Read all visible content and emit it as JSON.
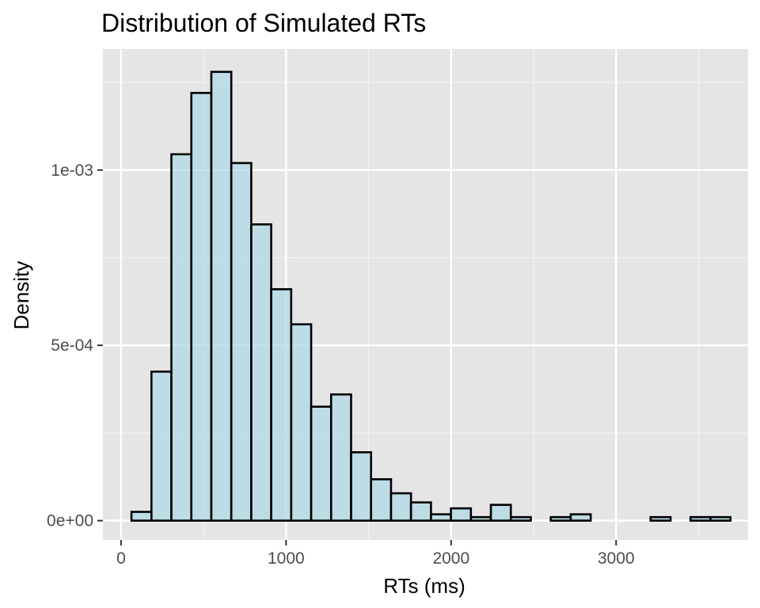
{
  "chart_data": {
    "type": "bar",
    "subtype": "histogram",
    "title": "Distribution of Simulated RTs",
    "xlabel": "RTs (ms)",
    "ylabel": "Density",
    "xlim": [
      -110,
      3800
    ],
    "ylim": [
      -5.5e-05,
      0.001345
    ],
    "x_ticks": [
      0,
      1000,
      2000,
      3000
    ],
    "x_tick_labels": [
      "0",
      "1000",
      "2000",
      "3000"
    ],
    "y_ticks": [
      0,
      0.0005,
      0.001
    ],
    "y_tick_labels": [
      "0e+00",
      "5e-04",
      "1e-03"
    ],
    "bin_width": 121,
    "bins": [
      {
        "start": 63,
        "end": 184,
        "density": 2.5e-05
      },
      {
        "start": 184,
        "end": 305,
        "density": 0.000425
      },
      {
        "start": 305,
        "end": 426,
        "density": 0.001045
      },
      {
        "start": 426,
        "end": 547,
        "density": 0.00122
      },
      {
        "start": 547,
        "end": 668,
        "density": 0.00128
      },
      {
        "start": 668,
        "end": 789,
        "density": 0.00102
      },
      {
        "start": 789,
        "end": 910,
        "density": 0.000845
      },
      {
        "start": 910,
        "end": 1031,
        "density": 0.00066
      },
      {
        "start": 1031,
        "end": 1152,
        "density": 0.00056
      },
      {
        "start": 1152,
        "end": 1273,
        "density": 0.000325
      },
      {
        "start": 1273,
        "end": 1394,
        "density": 0.00036
      },
      {
        "start": 1394,
        "end": 1515,
        "density": 0.000195
      },
      {
        "start": 1515,
        "end": 1636,
        "density": 0.000118
      },
      {
        "start": 1636,
        "end": 1757,
        "density": 7.8e-05
      },
      {
        "start": 1757,
        "end": 1878,
        "density": 5.2e-05
      },
      {
        "start": 1878,
        "end": 1999,
        "density": 1.8e-05
      },
      {
        "start": 1999,
        "end": 2120,
        "density": 3.5e-05
      },
      {
        "start": 2120,
        "end": 2241,
        "density": 1e-05
      },
      {
        "start": 2241,
        "end": 2362,
        "density": 4.5e-05
      },
      {
        "start": 2362,
        "end": 2483,
        "density": 1e-05
      },
      {
        "start": 2483,
        "end": 2604,
        "density": 0.0
      },
      {
        "start": 2604,
        "end": 2725,
        "density": 1e-05
      },
      {
        "start": 2725,
        "end": 2846,
        "density": 1.8e-05
      },
      {
        "start": 2846,
        "end": 2967,
        "density": 0.0
      },
      {
        "start": 2967,
        "end": 3088,
        "density": 0.0
      },
      {
        "start": 3088,
        "end": 3209,
        "density": 0.0
      },
      {
        "start": 3209,
        "end": 3330,
        "density": 1e-05
      },
      {
        "start": 3330,
        "end": 3451,
        "density": 0.0
      },
      {
        "start": 3451,
        "end": 3572,
        "density": 1e-05
      },
      {
        "start": 3572,
        "end": 3693,
        "density": 1e-05
      }
    ],
    "grid": true,
    "legend": "none",
    "colors": {
      "panel_background": "#e5e5e5",
      "grid_major": "#ffffff",
      "grid_minor": "#f2f2f2",
      "bar_fill": "#add8e6",
      "bar_fill_opacity": 0.7,
      "bar_outline": "#000000",
      "tick_text": "#4d4d4d",
      "tick_mark": "#333333",
      "title_text": "#000000"
    }
  }
}
